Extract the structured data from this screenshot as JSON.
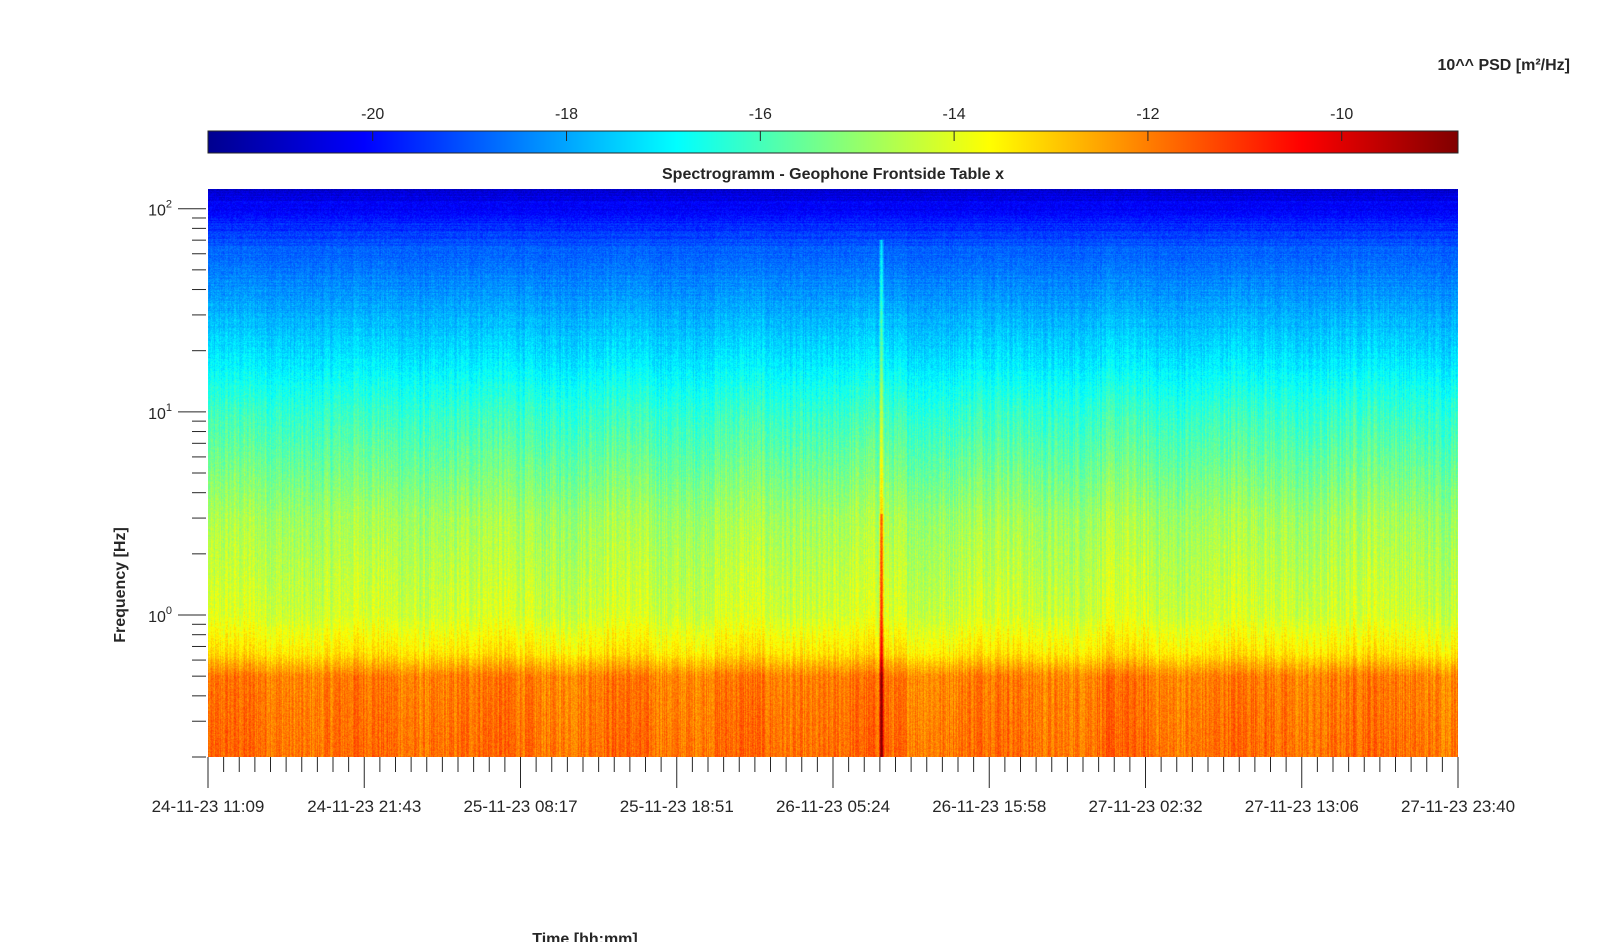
{
  "chart_data": {
    "type": "heatmap",
    "title": "Spectrogramm - Geophone Frontside Table x",
    "xlabel": "Time [hh:mm]",
    "ylabel": "Frequency [Hz]",
    "x_tick_labels": [
      "24-11-23 11:09",
      "24-11-23 21:43",
      "25-11-23 08:17",
      "25-11-23 18:51",
      "26-11-23 05:24",
      "26-11-23 15:58",
      "27-11-23 02:32",
      "27-11-23 13:06",
      "27-11-23 23:40"
    ],
    "y_scale": "log",
    "ylim": [
      0.2,
      125
    ],
    "y_major_ticks": [
      {
        "base": "10",
        "exp": "0",
        "value": 1
      },
      {
        "base": "10",
        "exp": "1",
        "value": 10
      },
      {
        "base": "10",
        "exp": "2",
        "value": 100
      }
    ],
    "colorbar": {
      "label": "10^^ PSD [m²/Hz]",
      "range": [
        -21.7,
        -8.8
      ],
      "ticks": [
        -20,
        -18,
        -16,
        -14,
        -12,
        -10
      ],
      "colormap": "jet"
    },
    "approx_psd_profile": [
      {
        "freq": 0.2,
        "log10_psd": -11.8
      },
      {
        "freq": 0.5,
        "log10_psd": -12.0
      },
      {
        "freq": 0.65,
        "log10_psd": -13.3
      },
      {
        "freq": 1,
        "log10_psd": -14.2
      },
      {
        "freq": 3,
        "log10_psd": -14.8
      },
      {
        "freq": 10,
        "log10_psd": -16.2
      },
      {
        "freq": 20,
        "log10_psd": -17.3
      },
      {
        "freq": 60,
        "log10_psd": -18.8
      },
      {
        "freq": 125,
        "log10_psd": -20.6
      }
    ],
    "events": [
      {
        "time": "26-11-23 08:40",
        "description": "broadband transient"
      }
    ],
    "grid": false
  }
}
